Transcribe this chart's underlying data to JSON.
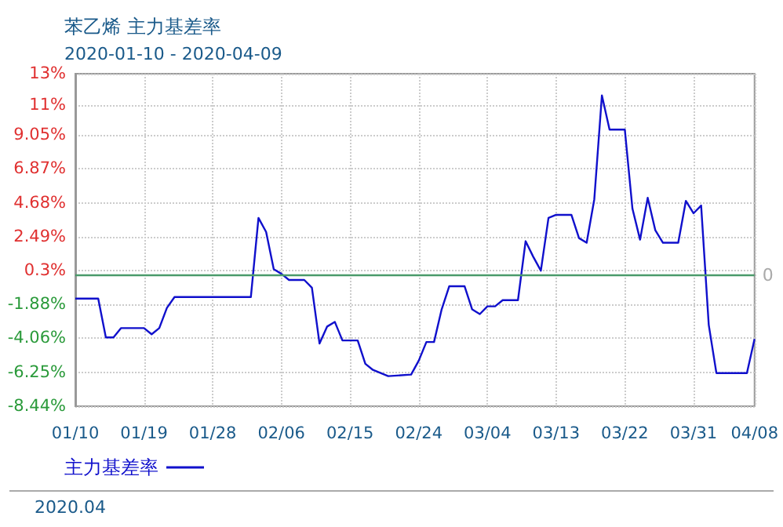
{
  "chart_data": {
    "type": "line",
    "title": "苯乙烯 主力基差率",
    "subtitle": "2020-01-10 - 2020-04-09",
    "annotations": [
      "2020.04"
    ],
    "x": [
      "2020-01-10",
      "2020-01-13",
      "2020-01-14",
      "2020-01-15",
      "2020-01-16",
      "2020-01-19",
      "2020-01-20",
      "2020-01-21",
      "2020-01-22",
      "2020-01-23",
      "2020-02-02",
      "2020-02-03",
      "2020-02-04",
      "2020-02-05",
      "2020-02-06",
      "2020-02-07",
      "2020-02-09",
      "2020-02-10",
      "2020-02-11",
      "2020-02-12",
      "2020-02-13",
      "2020-02-14",
      "2020-02-16",
      "2020-02-17",
      "2020-02-18",
      "2020-02-20",
      "2020-02-23",
      "2020-02-24",
      "2020-02-25",
      "2020-02-26",
      "2020-02-27",
      "2020-02-28",
      "2020-03-01",
      "2020-03-02",
      "2020-03-03",
      "2020-03-04",
      "2020-03-05",
      "2020-03-06",
      "2020-03-08",
      "2020-03-09",
      "2020-03-10",
      "2020-03-11",
      "2020-03-12",
      "2020-03-13",
      "2020-03-15",
      "2020-03-16",
      "2020-03-17",
      "2020-03-18",
      "2020-03-19",
      "2020-03-20",
      "2020-03-22",
      "2020-03-23",
      "2020-03-24",
      "2020-03-25",
      "2020-03-26",
      "2020-03-27",
      "2020-03-29",
      "2020-03-30",
      "2020-03-31",
      "2020-04-01",
      "2020-04-02",
      "2020-04-03",
      "2020-04-07",
      "2020-04-08"
    ],
    "series": [
      {
        "name": "主力基差率",
        "color": "#1010cc",
        "values": [
          -1.5,
          -1.5,
          -4.0,
          -4.0,
          -3.4,
          -3.4,
          -3.8,
          -3.4,
          -2.1,
          -1.4,
          -1.4,
          3.7,
          2.8,
          0.4,
          0.1,
          -0.3,
          -0.3,
          -0.8,
          -4.4,
          -3.3,
          -3.0,
          -4.2,
          -4.2,
          -5.7,
          -6.1,
          -6.5,
          -6.4,
          -5.5,
          -4.3,
          -4.3,
          -2.2,
          -0.7,
          -0.7,
          -2.2,
          -2.5,
          -2.0,
          -2.0,
          -1.6,
          -1.6,
          2.2,
          1.2,
          0.3,
          3.7,
          3.9,
          3.9,
          2.4,
          2.1,
          4.9,
          11.6,
          9.4,
          9.4,
          4.3,
          2.3,
          5.0,
          2.9,
          2.1,
          2.1,
          4.8,
          4.0,
          4.5,
          -3.2,
          -6.3,
          -6.3,
          -4.1
        ]
      }
    ],
    "xlim": [
      "2020-01-10",
      "2020-04-08"
    ],
    "xticks": [
      {
        "value": "2020-01-10",
        "label": "01/10"
      },
      {
        "value": "2020-01-19",
        "label": "01/19"
      },
      {
        "value": "2020-01-28",
        "label": "01/28"
      },
      {
        "value": "2020-02-06",
        "label": "02/06"
      },
      {
        "value": "2020-02-15",
        "label": "02/15"
      },
      {
        "value": "2020-02-24",
        "label": "02/24"
      },
      {
        "value": "2020-03-04",
        "label": "03/04"
      },
      {
        "value": "2020-03-13",
        "label": "03/13"
      },
      {
        "value": "2020-03-22",
        "label": "03/22"
      },
      {
        "value": "2020-03-31",
        "label": "03/31"
      },
      {
        "value": "2020-04-08",
        "label": "04/08"
      }
    ],
    "ylim": [
      -8.44,
      13
    ],
    "yticks": [
      {
        "value": -8.44,
        "label": "-8.44%"
      },
      {
        "value": -6.25,
        "label": "-6.25%"
      },
      {
        "value": -4.06,
        "label": "-4.06%"
      },
      {
        "value": -1.88,
        "label": "-1.88%"
      },
      {
        "value": 0.3,
        "label": "0.3%"
      },
      {
        "value": 2.49,
        "label": "2.49%"
      },
      {
        "value": 4.68,
        "label": "4.68%"
      },
      {
        "value": 6.87,
        "label": "6.87%"
      },
      {
        "value": 9.05,
        "label": "9.05%"
      },
      {
        "value": 11,
        "label": "11%"
      },
      {
        "value": 13,
        "label": "13%"
      }
    ],
    "ref_lines": [
      {
        "axis": "y",
        "value": 0,
        "label": "0",
        "color": "#4a9a6a"
      }
    ],
    "grid": true,
    "legend": "bottom left",
    "marker": "none",
    "line_style": "solid"
  }
}
